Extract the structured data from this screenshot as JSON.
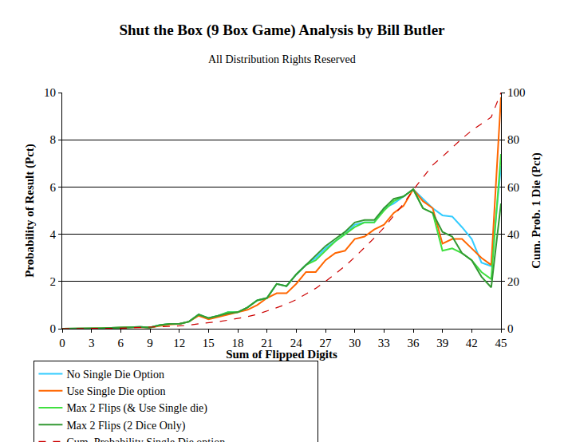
{
  "chart_data": {
    "type": "line",
    "title": "Shut the Box (9 Box Game) Analysis by Bill Butler",
    "subtitle": "All Distribution Rights Reserved",
    "x_label": "Sum of Flipped Digits",
    "y_label": "Probability of Result (Pct)",
    "y2_label": "Cum. Prob. 1 Die (Pct)",
    "x": [
      0,
      1,
      2,
      3,
      4,
      5,
      6,
      7,
      8,
      9,
      10,
      11,
      12,
      13,
      14,
      15,
      16,
      17,
      18,
      19,
      20,
      21,
      22,
      23,
      24,
      25,
      26,
      27,
      28,
      29,
      30,
      31,
      32,
      33,
      34,
      35,
      36,
      37,
      38,
      39,
      40,
      41,
      42,
      43,
      44,
      45
    ],
    "xlim": [
      0,
      45
    ],
    "xticks": [
      0,
      3,
      6,
      9,
      12,
      15,
      18,
      21,
      24,
      27,
      30,
      33,
      36,
      39,
      42,
      45
    ],
    "ylim": [
      0,
      10
    ],
    "yticks": [
      0,
      2,
      4,
      6,
      8,
      10
    ],
    "y2lim": [
      0,
      100
    ],
    "y2ticks": [
      0,
      20,
      40,
      60,
      80,
      100
    ],
    "grid": true,
    "legend": "bottom",
    "series": [
      {
        "name": "No Single Die Option",
        "color": "#33ccff",
        "values": [
          0,
          0,
          0,
          0,
          0.02,
          0.03,
          0.05,
          0.08,
          0.08,
          0.05,
          0.15,
          0.2,
          0.2,
          0.3,
          0.6,
          0.45,
          0.55,
          0.7,
          0.7,
          0.9,
          1.2,
          1.3,
          1.9,
          1.8,
          2.3,
          2.7,
          3.0,
          3.4,
          3.7,
          4.0,
          4.4,
          4.5,
          4.5,
          5.1,
          5.3,
          5.6,
          5.9,
          5.5,
          5.1,
          4.8,
          4.75,
          4.3,
          3.8,
          2.8,
          2.65,
          6.9
        ]
      },
      {
        "name": "Use Single Die option",
        "color": "#ff6600",
        "values": [
          0,
          0,
          0,
          0,
          0.02,
          0.03,
          0.05,
          0.06,
          0.06,
          0.05,
          0.12,
          0.18,
          0.2,
          0.3,
          0.55,
          0.4,
          0.5,
          0.6,
          0.7,
          0.8,
          1.0,
          1.3,
          1.5,
          1.5,
          1.9,
          2.4,
          2.4,
          2.9,
          3.2,
          3.3,
          3.8,
          3.9,
          4.2,
          4.4,
          4.9,
          5.2,
          5.9,
          5.4,
          5.1,
          3.6,
          3.8,
          3.8,
          3.4,
          3.0,
          2.7,
          9.8
        ]
      },
      {
        "name": "Max 2 Flips (& Use Single die)",
        "color": "#40e040",
        "values": [
          0,
          0,
          0,
          0,
          0.02,
          0.03,
          0.05,
          0.08,
          0.08,
          0.05,
          0.15,
          0.2,
          0.2,
          0.3,
          0.6,
          0.45,
          0.55,
          0.7,
          0.7,
          0.9,
          1.2,
          1.3,
          1.9,
          1.8,
          2.3,
          2.7,
          2.9,
          3.3,
          3.7,
          4.0,
          4.3,
          4.5,
          4.5,
          5.0,
          5.4,
          5.6,
          5.9,
          5.1,
          4.9,
          3.3,
          3.4,
          3.2,
          2.9,
          2.4,
          2.1,
          7.4
        ]
      },
      {
        "name": "Max 2 Flips (2 Dice Only)",
        "color": "#339933",
        "values": [
          0,
          0,
          0,
          0,
          0.02,
          0.03,
          0.05,
          0.08,
          0.08,
          0.05,
          0.15,
          0.2,
          0.2,
          0.3,
          0.6,
          0.45,
          0.55,
          0.65,
          0.7,
          0.9,
          1.2,
          1.3,
          1.9,
          1.8,
          2.3,
          2.7,
          3.1,
          3.5,
          3.8,
          4.1,
          4.5,
          4.6,
          4.6,
          5.1,
          5.5,
          5.6,
          5.9,
          5.1,
          4.9,
          4.1,
          3.9,
          3.2,
          2.9,
          2.2,
          1.75,
          5.3
        ]
      },
      {
        "name": "Cum. Probability Single Die option",
        "color": "#cc0000",
        "axis": "y2",
        "line_style": "dashed",
        "values": [
          0,
          0,
          0,
          0,
          0,
          0.1,
          0.2,
          0.4,
          0.5,
          0.6,
          0.8,
          1.0,
          1.2,
          1.5,
          2.1,
          2.5,
          3.0,
          3.6,
          4.3,
          5.1,
          6.1,
          7.4,
          8.9,
          10.4,
          12.3,
          14.7,
          17.1,
          20.0,
          23.2,
          26.5,
          30.3,
          34.2,
          38.4,
          42.8,
          47.7,
          52.9,
          58.8,
          64.2,
          69.3,
          72.9,
          76.7,
          80.5,
          83.9,
          86.9,
          89.6,
          100
        ]
      }
    ]
  }
}
